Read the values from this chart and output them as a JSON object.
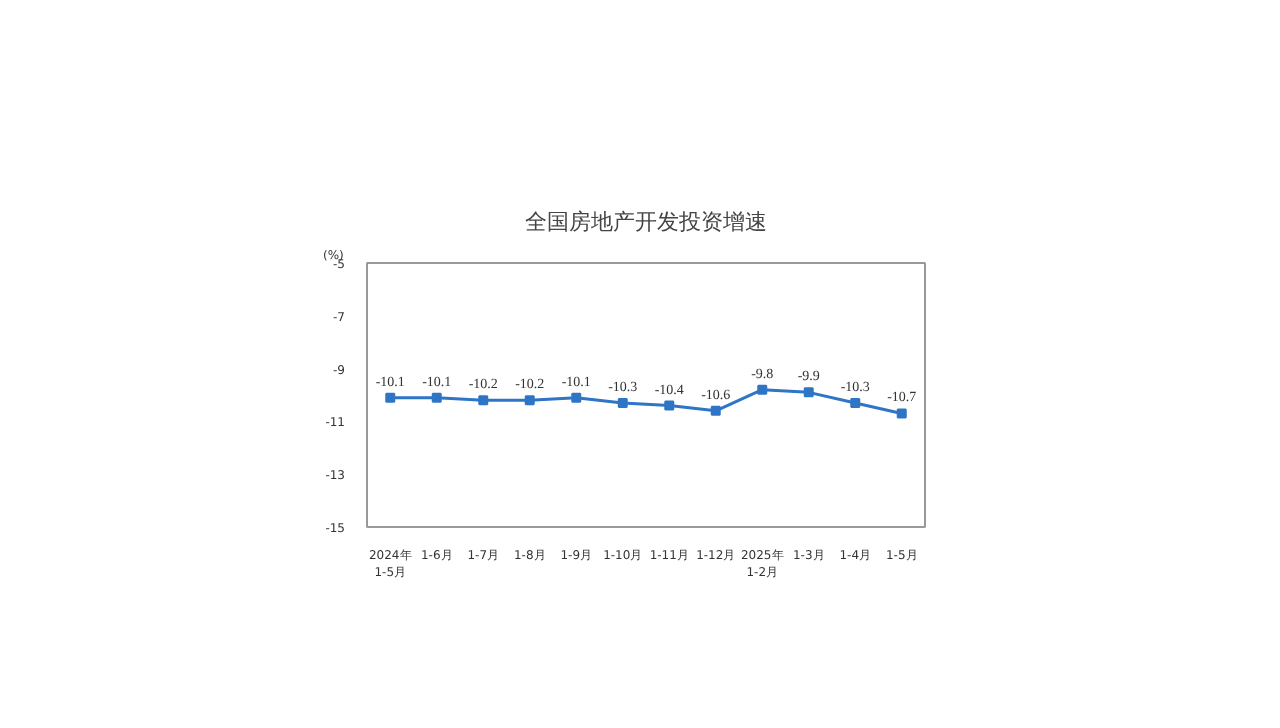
{
  "chart_data": {
    "type": "line",
    "title": "全国房地产开发投资增速",
    "ylabel": "(%)",
    "categories": [
      "2024年\n1-5月",
      "1-6月",
      "1-7月",
      "1-8月",
      "1-9月",
      "1-10月",
      "1-11月",
      "1-12月",
      "2025年\n1-2月",
      "1-3月",
      "1-4月",
      "1-5月"
    ],
    "values": [
      -10.1,
      -10.1,
      -10.2,
      -10.2,
      -10.1,
      -10.3,
      -10.4,
      -10.6,
      -9.8,
      -9.9,
      -10.3,
      -10.7
    ],
    "color": "#2e75c6",
    "ylim": [
      -15,
      -5
    ],
    "yticks": [
      -5,
      -7,
      -9,
      -11,
      -13,
      -15
    ],
    "grid": false,
    "marker": "square",
    "line_style": "solid",
    "data_labels": true
  }
}
